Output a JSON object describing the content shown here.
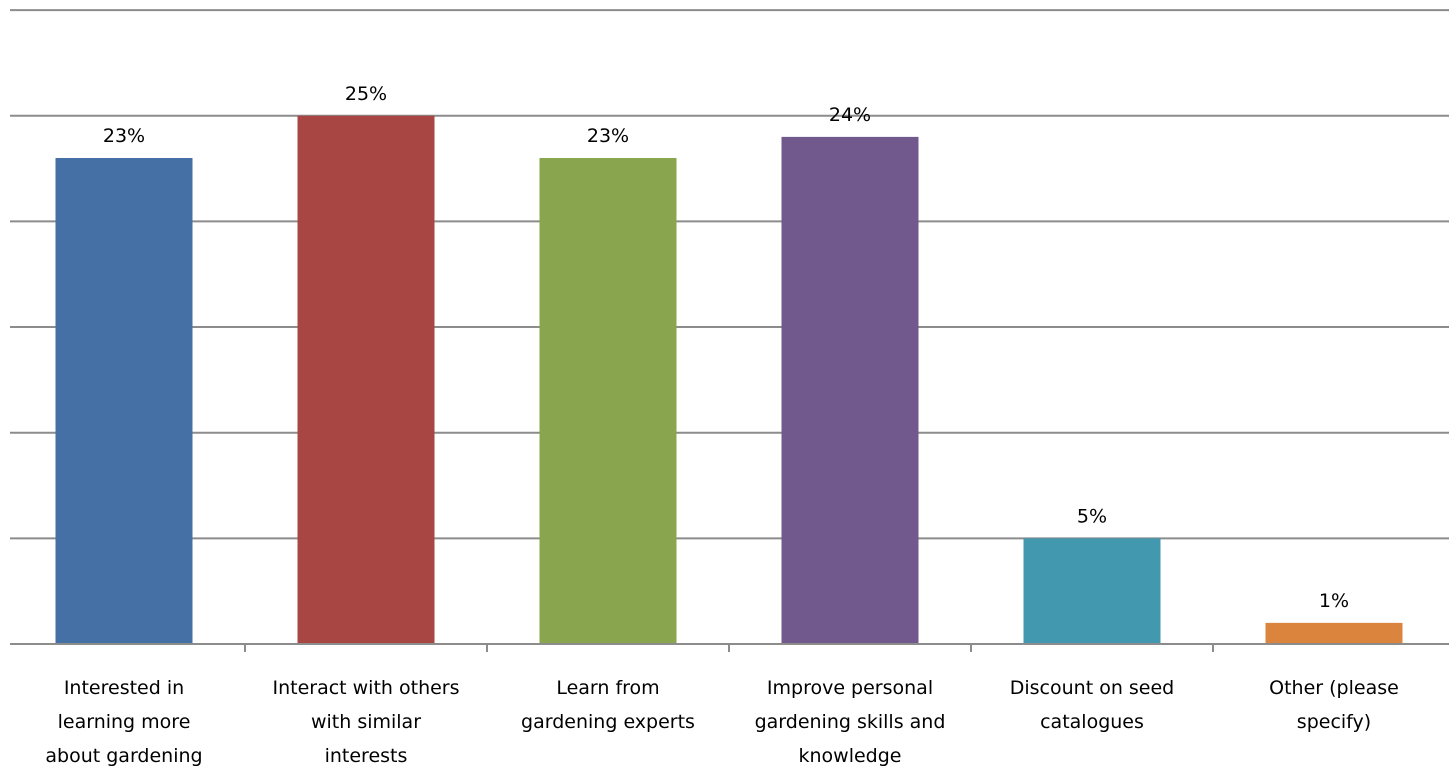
{
  "chart_data": {
    "type": "bar",
    "categories": [
      [
        "Interested in",
        "learning more",
        "about gardening"
      ],
      [
        "Interact with others",
        "with similar",
        "interests"
      ],
      [
        "Learn from",
        "gardening experts"
      ],
      [
        "Improve personal",
        "gardening skills and",
        "knowledge"
      ],
      [
        "Discount on seed",
        "catalogues"
      ],
      [
        "Other (please",
        "specify)"
      ]
    ],
    "values": [
      23,
      25,
      23,
      24,
      5,
      1
    ],
    "data_labels": [
      "23%",
      "25%",
      "23%",
      "24%",
      "5%",
      "1%"
    ],
    "colors": [
      "#4470a6",
      "#a84644",
      "#89a54e",
      "#71598e",
      "#4198af",
      "#db843d"
    ],
    "ylim": [
      0,
      30
    ],
    "y_major_step": 5,
    "grid": true,
    "legend": "none"
  }
}
